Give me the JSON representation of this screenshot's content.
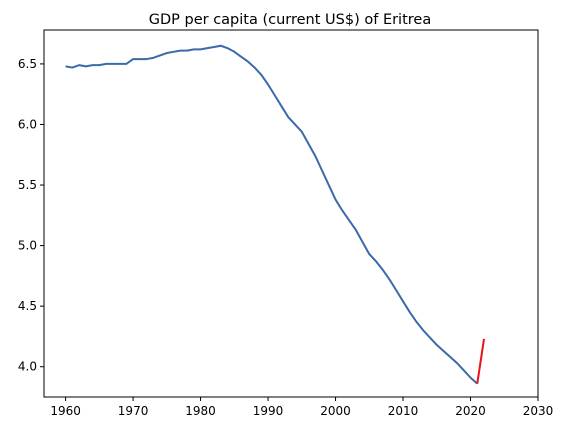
{
  "chart_data": {
    "type": "line",
    "title": "GDP per capita (current US$) of Eritrea",
    "xlabel": "",
    "ylabel": "",
    "xlim": [
      1956.8,
      2030
    ],
    "ylim": [
      3.75,
      6.78
    ],
    "x_ticks": [
      1960,
      1970,
      1980,
      1990,
      2000,
      2010,
      2020,
      2030
    ],
    "x_tick_labels": [
      "1960",
      "1970",
      "1980",
      "1990",
      "2000",
      "2010",
      "2020",
      "2030"
    ],
    "y_ticks": [
      4.0,
      4.5,
      5.0,
      5.5,
      6.0,
      6.5
    ],
    "y_tick_labels": [
      "4.0",
      "4.5",
      "5.0",
      "5.5",
      "6.0",
      "6.5"
    ],
    "grid": false,
    "series": [
      {
        "color": "#3a6aa8",
        "x": [
          1960,
          1961,
          1962,
          1963,
          1964,
          1965,
          1966,
          1967,
          1968,
          1969,
          1970,
          1971,
          1972,
          1973,
          1974,
          1975,
          1976,
          1977,
          1978,
          1979,
          1980,
          1981,
          1982,
          1983,
          1984,
          1985,
          1986,
          1987,
          1988,
          1989,
          1990,
          1991,
          1992,
          1993,
          1994,
          1995,
          1996,
          1997,
          1998,
          1999,
          2000,
          2001,
          2002,
          2003,
          2004,
          2005,
          2006,
          2007,
          2008,
          2009,
          2010,
          2011,
          2012,
          2013,
          2014,
          2015,
          2016,
          2017,
          2018,
          2019,
          2020,
          2021
        ],
        "y": [
          6.48,
          6.47,
          6.49,
          6.48,
          6.49,
          6.49,
          6.5,
          6.5,
          6.5,
          6.5,
          6.54,
          6.54,
          6.54,
          6.55,
          6.57,
          6.59,
          6.6,
          6.61,
          6.61,
          6.62,
          6.62,
          6.63,
          6.64,
          6.65,
          6.63,
          6.6,
          6.56,
          6.52,
          6.47,
          6.41,
          6.33,
          6.24,
          6.15,
          6.06,
          6.0,
          5.94,
          5.84,
          5.74,
          5.62,
          5.5,
          5.38,
          5.29,
          5.21,
          5.13,
          5.03,
          4.93,
          4.87,
          4.8,
          4.72,
          4.63,
          4.54,
          4.45,
          4.37,
          4.3,
          4.24,
          4.18,
          4.13,
          4.08,
          4.03,
          3.97,
          3.91,
          3.86
        ]
      },
      {
        "color": "#e8101a",
        "x": [
          2021,
          2022
        ],
        "y": [
          3.86,
          4.23
        ]
      }
    ]
  }
}
